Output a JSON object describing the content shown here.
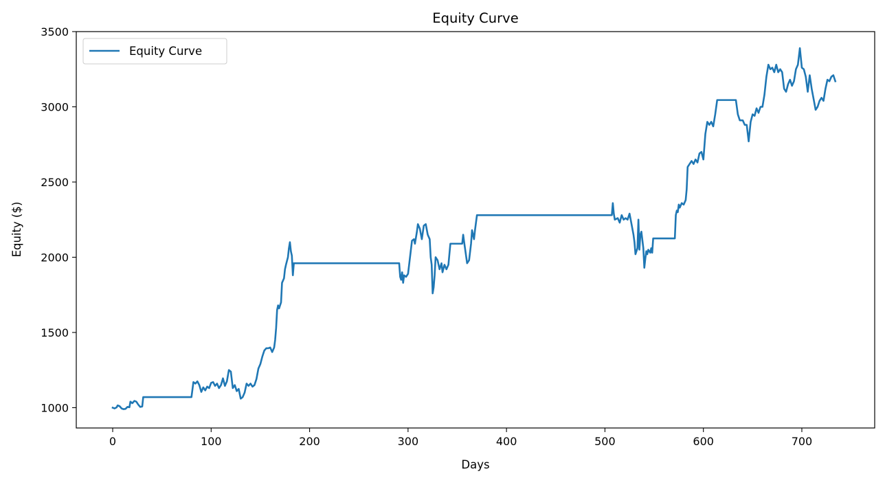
{
  "chart_data": {
    "type": "line",
    "title": "Equity Curve",
    "xlabel": "Days",
    "ylabel": "Equity ($)",
    "xlim": [
      -37,
      774
    ],
    "ylim": [
      865,
      3500
    ],
    "xticks": [
      0,
      100,
      200,
      300,
      400,
      500,
      600,
      700
    ],
    "yticks": [
      1000,
      1500,
      2000,
      2500,
      3000,
      3500
    ],
    "grid": false,
    "legend": "top-left",
    "color": "#1f77b4",
    "series": [
      {
        "name": "Equity Curve",
        "points": [
          [
            0,
            1000
          ],
          [
            2,
            995
          ],
          [
            4,
            1002
          ],
          [
            5,
            1015
          ],
          [
            7,
            1010
          ],
          [
            9,
            995
          ],
          [
            11,
            990
          ],
          [
            13,
            992
          ],
          [
            15,
            1005
          ],
          [
            17,
            1003
          ],
          [
            18,
            1040
          ],
          [
            20,
            1030
          ],
          [
            22,
            1045
          ],
          [
            24,
            1040
          ],
          [
            26,
            1020
          ],
          [
            28,
            1005
          ],
          [
            30,
            1008
          ],
          [
            31,
            1070
          ],
          [
            80,
            1070
          ],
          [
            82,
            1170
          ],
          [
            84,
            1160
          ],
          [
            86,
            1175
          ],
          [
            88,
            1150
          ],
          [
            90,
            1105
          ],
          [
            92,
            1135
          ],
          [
            94,
            1115
          ],
          [
            96,
            1140
          ],
          [
            98,
            1130
          ],
          [
            100,
            1165
          ],
          [
            102,
            1170
          ],
          [
            104,
            1145
          ],
          [
            106,
            1160
          ],
          [
            108,
            1130
          ],
          [
            110,
            1150
          ],
          [
            112,
            1195
          ],
          [
            114,
            1145
          ],
          [
            116,
            1175
          ],
          [
            118,
            1250
          ],
          [
            120,
            1240
          ],
          [
            122,
            1130
          ],
          [
            124,
            1150
          ],
          [
            126,
            1110
          ],
          [
            128,
            1125
          ],
          [
            130,
            1060
          ],
          [
            132,
            1070
          ],
          [
            134,
            1100
          ],
          [
            136,
            1160
          ],
          [
            138,
            1145
          ],
          [
            140,
            1160
          ],
          [
            142,
            1140
          ],
          [
            144,
            1150
          ],
          [
            146,
            1190
          ],
          [
            148,
            1260
          ],
          [
            150,
            1290
          ],
          [
            152,
            1340
          ],
          [
            154,
            1380
          ],
          [
            156,
            1395
          ],
          [
            158,
            1395
          ],
          [
            160,
            1400
          ],
          [
            162,
            1370
          ],
          [
            164,
            1400
          ],
          [
            165,
            1450
          ],
          [
            166,
            1530
          ],
          [
            167,
            1650
          ],
          [
            168,
            1680
          ],
          [
            169,
            1660
          ],
          [
            171,
            1700
          ],
          [
            172,
            1830
          ],
          [
            174,
            1860
          ],
          [
            175,
            1920
          ],
          [
            176,
            1950
          ],
          [
            178,
            2000
          ],
          [
            179,
            2060
          ],
          [
            180,
            2100
          ],
          [
            181,
            2040
          ],
          [
            182,
            2010
          ],
          [
            183,
            1880
          ],
          [
            184,
            1960
          ],
          [
            291,
            1960
          ],
          [
            292,
            1870
          ],
          [
            293,
            1850
          ],
          [
            294,
            1900
          ],
          [
            295,
            1830
          ],
          [
            296,
            1880
          ],
          [
            298,
            1870
          ],
          [
            300,
            1890
          ],
          [
            302,
            2000
          ],
          [
            304,
            2110
          ],
          [
            306,
            2120
          ],
          [
            307,
            2090
          ],
          [
            309,
            2170
          ],
          [
            310,
            2220
          ],
          [
            312,
            2190
          ],
          [
            314,
            2120
          ],
          [
            316,
            2210
          ],
          [
            318,
            2220
          ],
          [
            320,
            2150
          ],
          [
            322,
            2120
          ],
          [
            323,
            2000
          ],
          [
            324,
            1950
          ],
          [
            325,
            1760
          ],
          [
            326,
            1800
          ],
          [
            327,
            1880
          ],
          [
            328,
            2000
          ],
          [
            330,
            1980
          ],
          [
            332,
            1920
          ],
          [
            334,
            1960
          ],
          [
            335,
            1900
          ],
          [
            337,
            1950
          ],
          [
            339,
            1920
          ],
          [
            341,
            1950
          ],
          [
            343,
            2090
          ],
          [
            355,
            2090
          ],
          [
            356,
            2150
          ],
          [
            357,
            2100
          ],
          [
            360,
            1960
          ],
          [
            362,
            1980
          ],
          [
            364,
            2090
          ],
          [
            365,
            2180
          ],
          [
            367,
            2120
          ],
          [
            368,
            2180
          ],
          [
            370,
            2280
          ],
          [
            507,
            2280
          ],
          [
            508,
            2360
          ],
          [
            509,
            2290
          ],
          [
            510,
            2250
          ],
          [
            513,
            2260
          ],
          [
            515,
            2230
          ],
          [
            517,
            2280
          ],
          [
            519,
            2250
          ],
          [
            521,
            2260
          ],
          [
            523,
            2250
          ],
          [
            525,
            2290
          ],
          [
            527,
            2220
          ],
          [
            529,
            2150
          ],
          [
            530,
            2100
          ],
          [
            531,
            2020
          ],
          [
            533,
            2060
          ],
          [
            534,
            2250
          ],
          [
            535,
            2050
          ],
          [
            536,
            2150
          ],
          [
            537,
            2170
          ],
          [
            539,
            2060
          ],
          [
            540,
            1930
          ],
          [
            541,
            1990
          ],
          [
            542,
            2040
          ],
          [
            543,
            2020
          ],
          [
            544,
            2050
          ],
          [
            546,
            2030
          ],
          [
            547,
            2060
          ],
          [
            548,
            2030
          ],
          [
            549,
            2125
          ],
          [
            571,
            2125
          ],
          [
            572,
            2280
          ],
          [
            573,
            2310
          ],
          [
            574,
            2300
          ],
          [
            575,
            2350
          ],
          [
            576,
            2330
          ],
          [
            578,
            2360
          ],
          [
            580,
            2350
          ],
          [
            582,
            2380
          ],
          [
            583,
            2450
          ],
          [
            584,
            2600
          ],
          [
            586,
            2620
          ],
          [
            588,
            2640
          ],
          [
            590,
            2620
          ],
          [
            592,
            2650
          ],
          [
            594,
            2630
          ],
          [
            596,
            2690
          ],
          [
            598,
            2700
          ],
          [
            600,
            2650
          ],
          [
            602,
            2820
          ],
          [
            604,
            2900
          ],
          [
            606,
            2880
          ],
          [
            608,
            2900
          ],
          [
            610,
            2870
          ],
          [
            612,
            2950
          ],
          [
            614,
            3045
          ],
          [
            633,
            3045
          ],
          [
            635,
            2950
          ],
          [
            637,
            2910
          ],
          [
            640,
            2910
          ],
          [
            642,
            2880
          ],
          [
            644,
            2880
          ],
          [
            646,
            2770
          ],
          [
            648,
            2900
          ],
          [
            650,
            2950
          ],
          [
            652,
            2940
          ],
          [
            654,
            2990
          ],
          [
            656,
            2960
          ],
          [
            658,
            3000
          ],
          [
            660,
            3000
          ],
          [
            662,
            3080
          ],
          [
            664,
            3200
          ],
          [
            666,
            3280
          ],
          [
            668,
            3250
          ],
          [
            670,
            3260
          ],
          [
            672,
            3230
          ],
          [
            674,
            3280
          ],
          [
            676,
            3230
          ],
          [
            678,
            3250
          ],
          [
            680,
            3230
          ],
          [
            682,
            3120
          ],
          [
            684,
            3100
          ],
          [
            686,
            3150
          ],
          [
            688,
            3180
          ],
          [
            690,
            3140
          ],
          [
            692,
            3170
          ],
          [
            694,
            3250
          ],
          [
            696,
            3280
          ],
          [
            698,
            3390
          ],
          [
            700,
            3260
          ],
          [
            702,
            3250
          ],
          [
            704,
            3200
          ],
          [
            706,
            3100
          ],
          [
            708,
            3210
          ],
          [
            710,
            3120
          ],
          [
            712,
            3050
          ],
          [
            714,
            2980
          ],
          [
            716,
            3000
          ],
          [
            718,
            3040
          ],
          [
            720,
            3060
          ],
          [
            722,
            3040
          ],
          [
            724,
            3120
          ],
          [
            726,
            3180
          ],
          [
            728,
            3170
          ],
          [
            730,
            3200
          ],
          [
            732,
            3210
          ],
          [
            734,
            3170
          ]
        ]
      }
    ]
  }
}
